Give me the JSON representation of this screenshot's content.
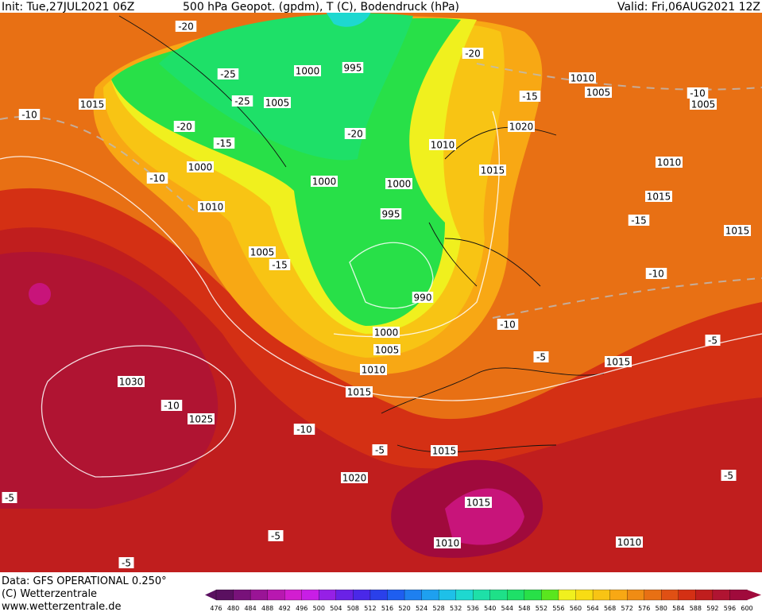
{
  "header": {
    "init": "Init: Tue,27JUL2021 06Z",
    "title": "500 hPa Geopot. (gpdm), T (C), Bodendruck (hPa)",
    "valid": "Valid: Fri,06AUG2021 12Z"
  },
  "footer": {
    "source": "Data: GFS OPERATIONAL 0.250°",
    "copyright": "(C) Wetterzentrale",
    "url": "www.wetterzentrale.de"
  },
  "colorbar": {
    "ticks": [
      476,
      480,
      484,
      488,
      492,
      496,
      500,
      504,
      508,
      512,
      516,
      520,
      524,
      528,
      532,
      536,
      540,
      544,
      548,
      552,
      556,
      560,
      564,
      568,
      572,
      576,
      580,
      584,
      588,
      592,
      596,
      600
    ],
    "colors": [
      "#5a1060",
      "#78127a",
      "#9a1496",
      "#b818b0",
      "#d21ed0",
      "#c81ee6",
      "#9620e6",
      "#6a22e6",
      "#4a28e8",
      "#2a40ea",
      "#1e5ef0",
      "#1e80f0",
      "#1ea0f0",
      "#1ec0e8",
      "#1ed8d0",
      "#1ee0a8",
      "#1ee088",
      "#1ee068",
      "#28e048",
      "#5ae61e",
      "#f0f01e",
      "#f8dc14",
      "#f8c414",
      "#f8a814",
      "#f08c14",
      "#e87014",
      "#e05014",
      "#d43014",
      "#c01e1e",
      "#b01432",
      "#a00a3c"
    ]
  },
  "map_labels": [
    "-20",
    "995",
    "1000",
    "-20",
    "1010",
    "-25",
    "1005",
    "-10",
    "-15",
    "1005",
    "1015",
    "-25",
    "1005",
    "-10",
    "-20",
    "1020",
    "-20",
    "-15",
    "1010",
    "1000",
    "1015",
    "1010",
    "-10",
    "1000",
    "1000",
    "1015",
    "1010",
    "995",
    "-15",
    "1015",
    "1005",
    "-15",
    "-10",
    "990",
    "-10",
    "1000",
    "-5",
    "1005",
    "-5",
    "1015",
    "1010",
    "1030",
    "1015",
    "-10",
    "1025",
    "-10",
    "-5",
    "1015",
    "1020",
    "-5",
    "-5",
    "1015",
    "-5",
    "1010",
    "1010",
    "-5"
  ]
}
